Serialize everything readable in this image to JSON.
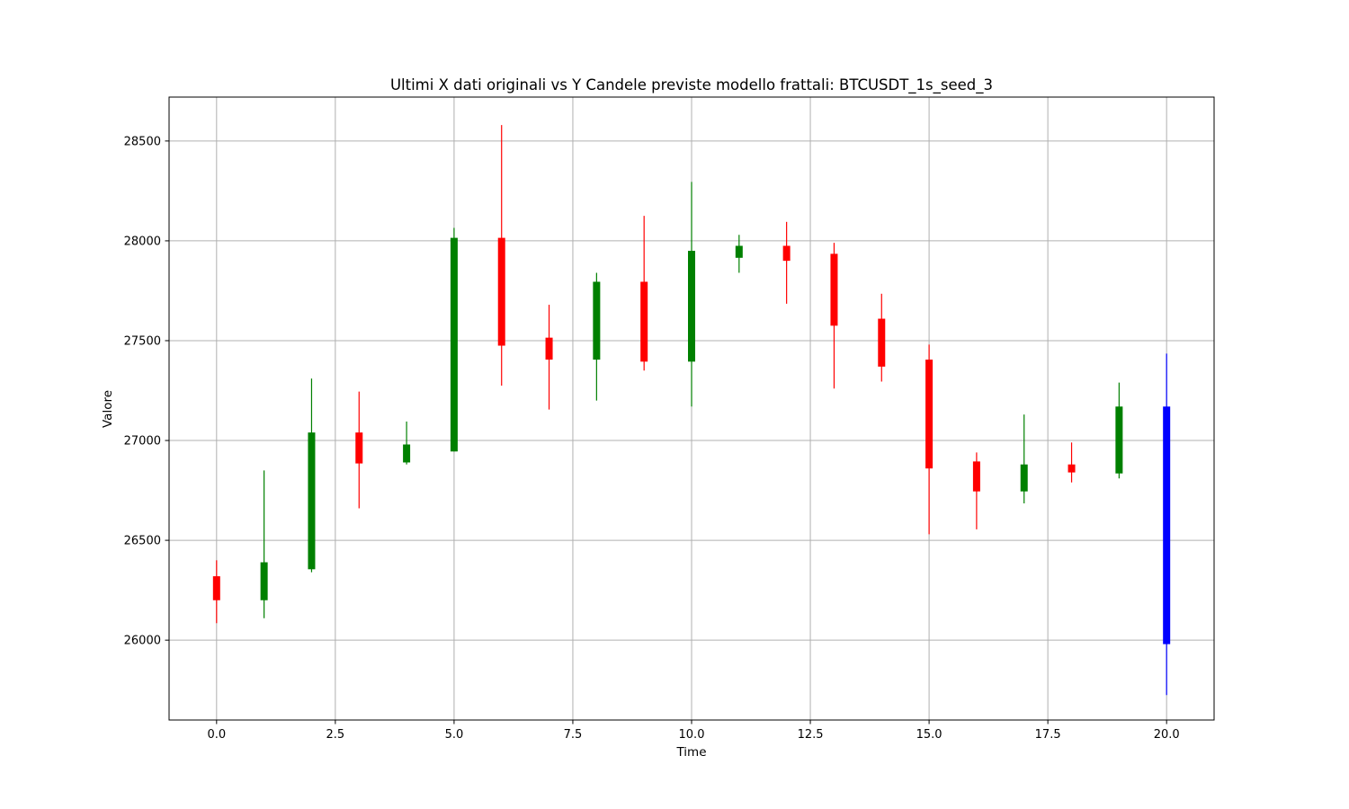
{
  "chart_data": {
    "type": "candlestick",
    "title": "Ultimi X dati originali vs Y Candele previste modello frattali: BTCUSDT_1s_seed_3",
    "xlabel": "Time",
    "ylabel": "Valore",
    "xlim": [
      -1,
      21
    ],
    "ylim": [
      25600,
      28720
    ],
    "xticks": [
      0.0,
      2.5,
      5.0,
      7.5,
      10.0,
      12.5,
      15.0,
      17.5,
      20.0
    ],
    "xtick_labels": [
      "0.0",
      "2.5",
      "5.0",
      "7.5",
      "10.0",
      "12.5",
      "15.0",
      "17.5",
      "20.0"
    ],
    "yticks": [
      26000,
      26500,
      27000,
      27500,
      28000,
      28500
    ],
    "ytick_labels": [
      "26000",
      "26500",
      "27000",
      "27500",
      "28000",
      "28500"
    ],
    "grid": true,
    "colors": {
      "up": "#008000",
      "down": "#ff0000",
      "forecast": "#0000ff"
    },
    "candles": [
      {
        "x": 0,
        "open": 26320,
        "close": 26200,
        "high": 26400,
        "low": 26085,
        "kind": "down"
      },
      {
        "x": 1,
        "open": 26200,
        "close": 26390,
        "high": 26850,
        "low": 26110,
        "kind": "up"
      },
      {
        "x": 2,
        "open": 26355,
        "close": 27040,
        "high": 27310,
        "low": 26340,
        "kind": "up"
      },
      {
        "x": 3,
        "open": 27040,
        "close": 26885,
        "high": 27245,
        "low": 26660,
        "kind": "down"
      },
      {
        "x": 4,
        "open": 26890,
        "close": 26980,
        "high": 27095,
        "low": 26880,
        "kind": "up"
      },
      {
        "x": 5,
        "open": 26945,
        "close": 28015,
        "high": 28065,
        "low": 26945,
        "kind": "up"
      },
      {
        "x": 6,
        "open": 28015,
        "close": 27475,
        "high": 28580,
        "low": 27275,
        "kind": "down"
      },
      {
        "x": 7,
        "open": 27515,
        "close": 27405,
        "high": 27680,
        "low": 27155,
        "kind": "down"
      },
      {
        "x": 8,
        "open": 27405,
        "close": 27795,
        "high": 27840,
        "low": 27200,
        "kind": "up"
      },
      {
        "x": 9,
        "open": 27795,
        "close": 27395,
        "high": 28125,
        "low": 27350,
        "kind": "down"
      },
      {
        "x": 10,
        "open": 27395,
        "close": 27950,
        "high": 28295,
        "low": 27170,
        "kind": "up"
      },
      {
        "x": 11,
        "open": 27915,
        "close": 27975,
        "high": 28030,
        "low": 27840,
        "kind": "up"
      },
      {
        "x": 12,
        "open": 27975,
        "close": 27900,
        "high": 28095,
        "low": 27685,
        "kind": "down"
      },
      {
        "x": 13,
        "open": 27935,
        "close": 27575,
        "high": 27990,
        "low": 27260,
        "kind": "down"
      },
      {
        "x": 14,
        "open": 27610,
        "close": 27370,
        "high": 27735,
        "low": 27295,
        "kind": "down"
      },
      {
        "x": 15,
        "open": 27405,
        "close": 26860,
        "high": 27480,
        "low": 26530,
        "kind": "down"
      },
      {
        "x": 16,
        "open": 26895,
        "close": 26745,
        "high": 26940,
        "low": 26555,
        "kind": "down"
      },
      {
        "x": 17,
        "open": 26745,
        "close": 26880,
        "high": 27130,
        "low": 26685,
        "kind": "up"
      },
      {
        "x": 18,
        "open": 26880,
        "close": 26840,
        "high": 26990,
        "low": 26790,
        "kind": "down"
      },
      {
        "x": 19,
        "open": 26835,
        "close": 27170,
        "high": 27290,
        "low": 26810,
        "kind": "up"
      },
      {
        "x": 20,
        "open": 27170,
        "close": 25980,
        "high": 27435,
        "low": 25725,
        "kind": "forecast"
      }
    ]
  }
}
